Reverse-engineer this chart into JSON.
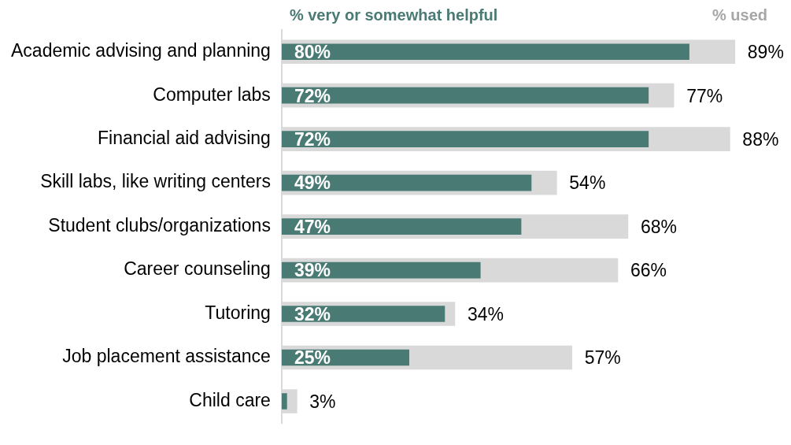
{
  "chart_data": {
    "type": "bar",
    "orientation": "horizontal",
    "categories": [
      "Academic advising and planning",
      "Computer labs",
      "Financial aid advising",
      "Skill labs, like writing centers",
      "Student clubs/organizations",
      "Career counseling",
      "Tutoring",
      "Job placement assistance",
      "Child care"
    ],
    "series": [
      {
        "name": "% used",
        "color": "#d9d9d9",
        "values": [
          89,
          77,
          88,
          54,
          68,
          66,
          34,
          57,
          3
        ],
        "value_labels": [
          "89%",
          "77%",
          "88%",
          "54%",
          "68%",
          "66%",
          "34%",
          "57%",
          "3%"
        ]
      },
      {
        "name": "% very or somewhat helpful",
        "color": "#4a7a74",
        "values": [
          80,
          72,
          72,
          49,
          47,
          39,
          32,
          25,
          1
        ],
        "value_labels": [
          "80%",
          "72%",
          "72%",
          "49%",
          "47%",
          "39%",
          "32%",
          "25%",
          null
        ]
      }
    ],
    "tick_labels": "y",
    "legend": "top"
  }
}
